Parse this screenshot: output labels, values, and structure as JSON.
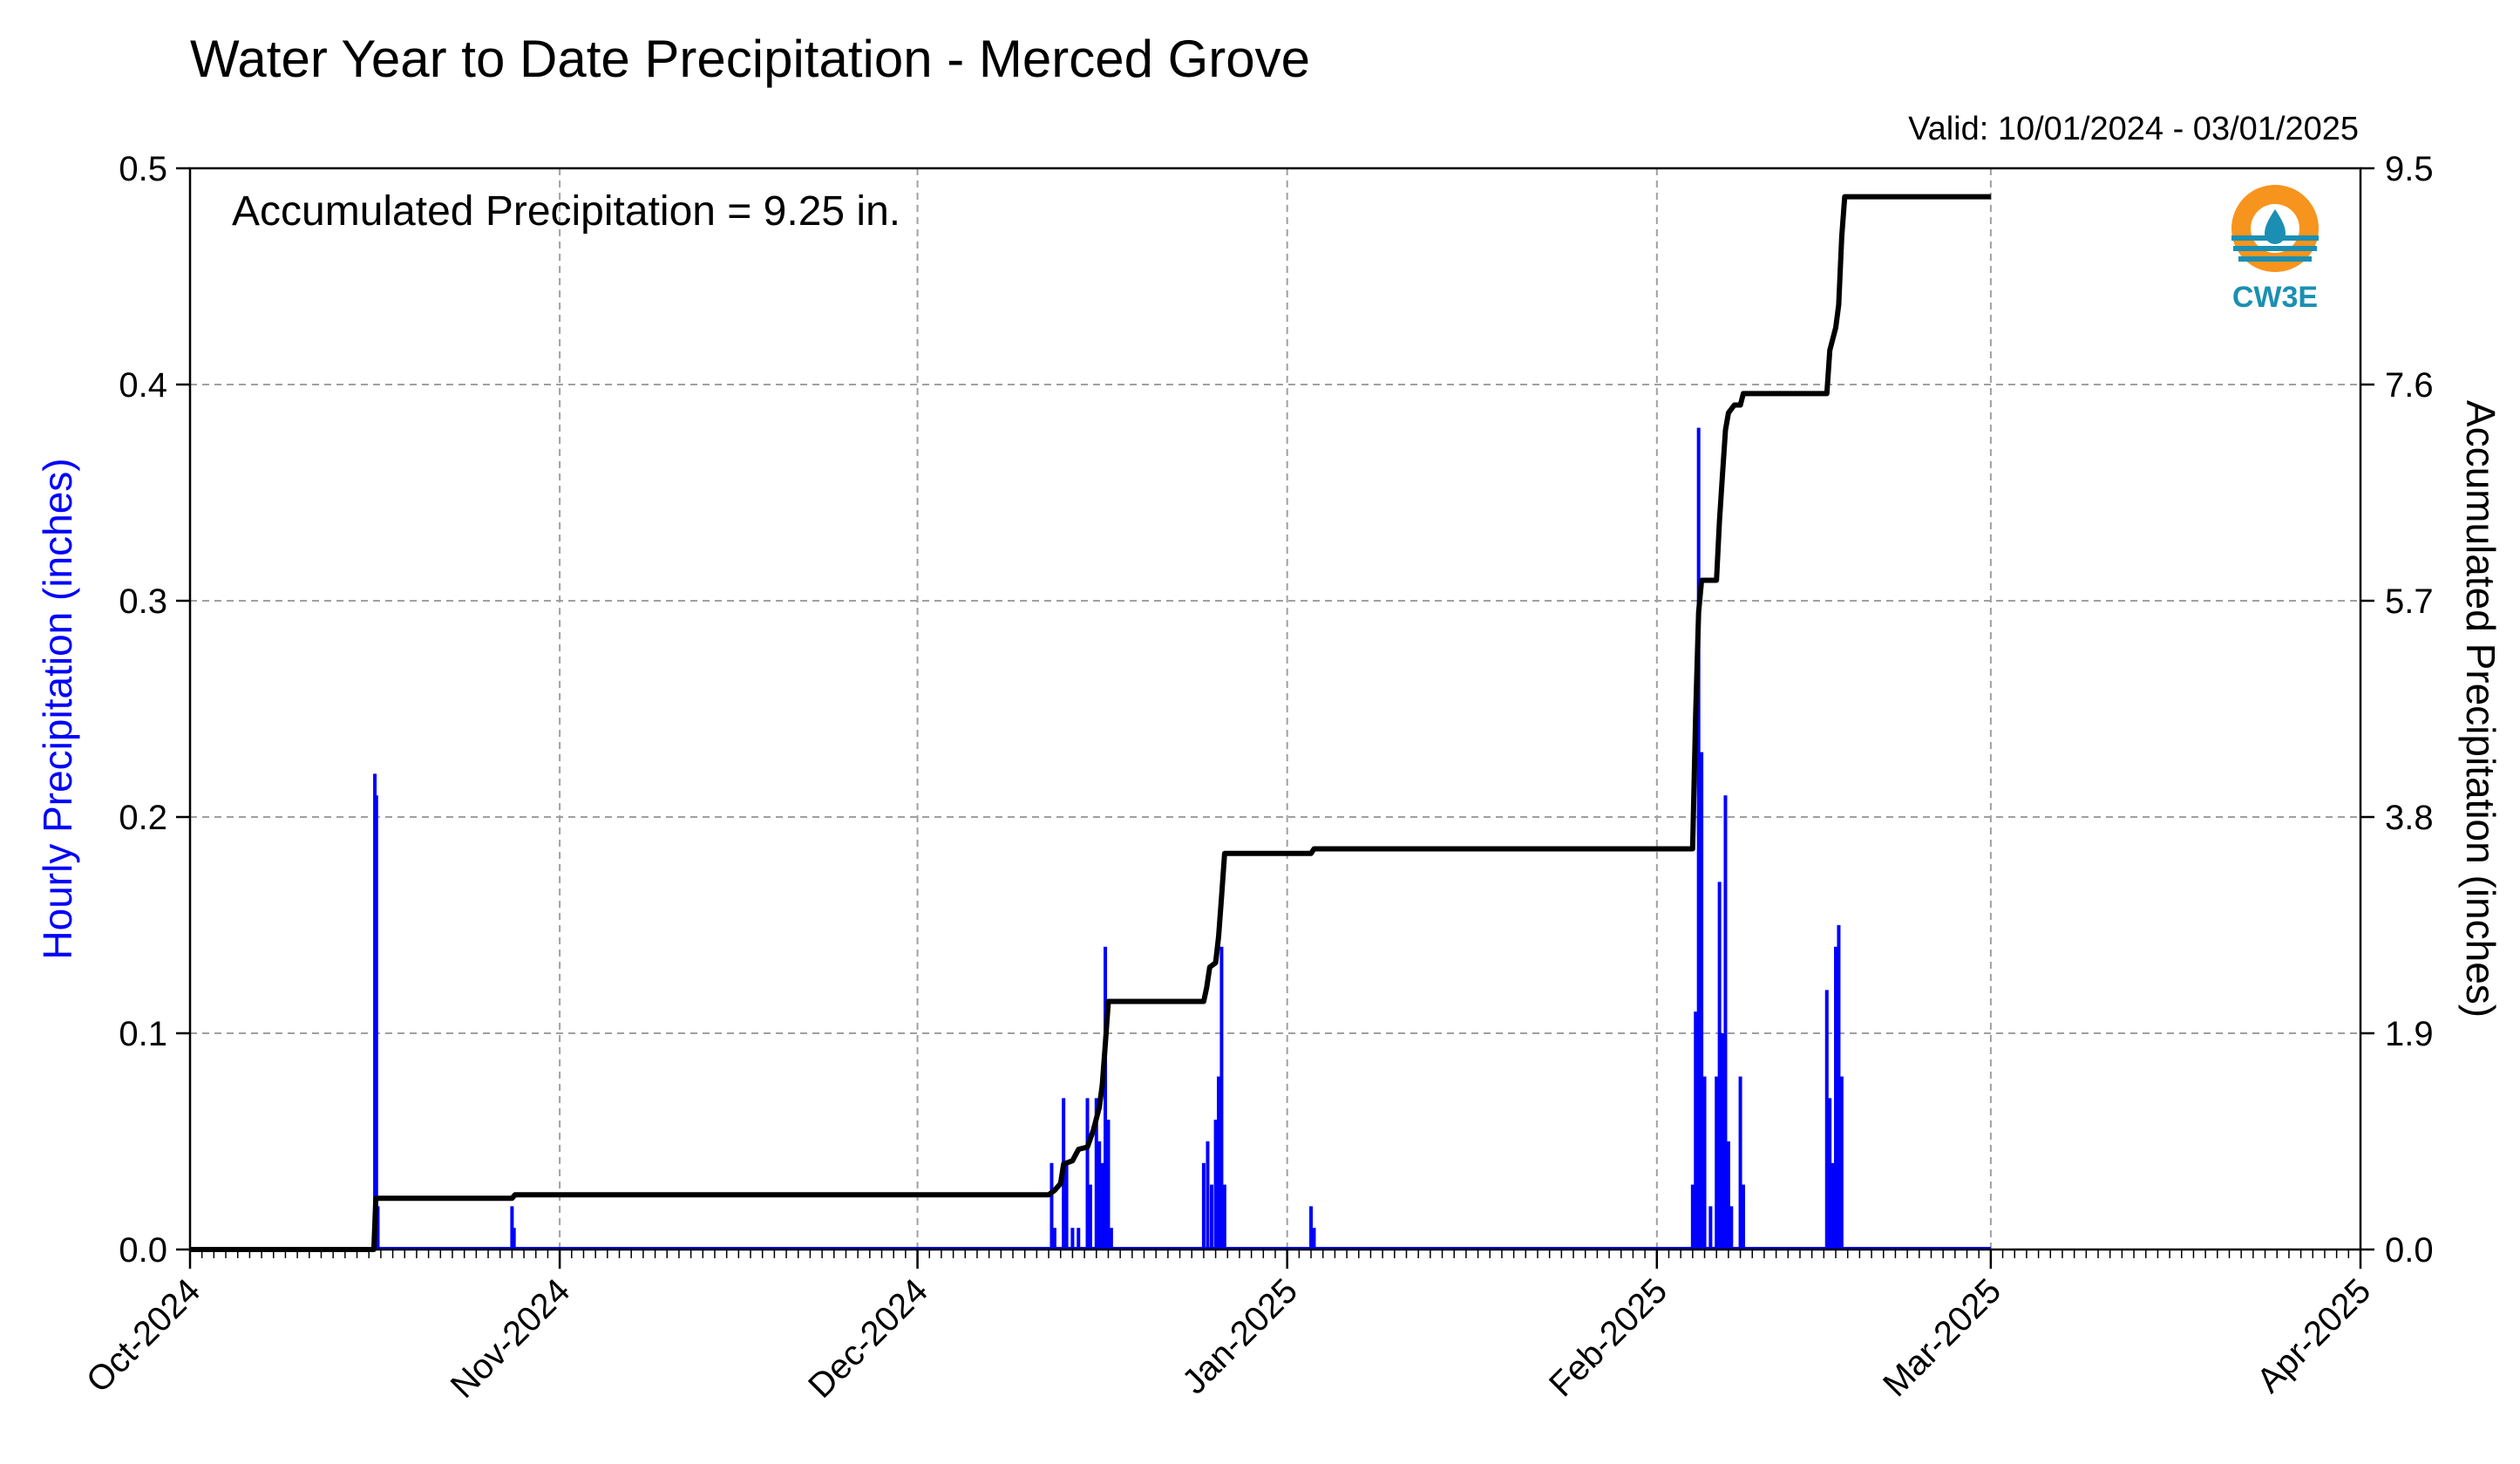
{
  "chart_data": {
    "type": "bar+line",
    "title": "Water Year to Date Precipitation - Merced Grove",
    "valid_label": "Valid: 10/01/2024 - 03/01/2025",
    "annotation": "Accumulated Precipitation = 9.25 in.",
    "ylabel_left": "Hourly Precipitation (inches)",
    "ylabel_right": "Accumulated Precipitation (inches)",
    "x_range": [
      "2024-10-01",
      "2025-04-01"
    ],
    "x_ticks": [
      {
        "date": "2024-10-01",
        "label": "Oct-2024"
      },
      {
        "date": "2024-11-01",
        "label": "Nov-2024"
      },
      {
        "date": "2024-12-01",
        "label": "Dec-2024"
      },
      {
        "date": "2025-01-01",
        "label": "Jan-2025"
      },
      {
        "date": "2025-02-01",
        "label": "Feb-2025"
      },
      {
        "date": "2025-03-01",
        "label": "Mar-2025"
      },
      {
        "date": "2025-04-01",
        "label": "Apr-2025"
      }
    ],
    "y_left": {
      "range": [
        0,
        0.5
      ],
      "ticks": [
        "0.0",
        "0.1",
        "0.2",
        "0.3",
        "0.4",
        "0.5"
      ]
    },
    "y_right": {
      "range": [
        0,
        9.5
      ],
      "ticks": [
        "0.0",
        "1.9",
        "3.8",
        "5.7",
        "7.6",
        "9.5"
      ]
    },
    "grid": true,
    "colors": {
      "hourly": "#0000ff",
      "accumulated": "#000000",
      "logo_orange": "#f7941d",
      "logo_teal": "#1b8fb3"
    },
    "logo_text": "CW3E",
    "hourly_series": {
      "name": "Hourly Precipitation",
      "points": [
        [
          "2024-10-16T12:00",
          0.22
        ],
        [
          "2024-10-16T15:00",
          0.21
        ],
        [
          "2024-10-16T18:00",
          0.02
        ],
        [
          "2024-10-28T00:00",
          0.02
        ],
        [
          "2024-10-28T04:00",
          0.01
        ],
        [
          "2024-12-12T06:00",
          0.04
        ],
        [
          "2024-12-12T12:00",
          0.01
        ],
        [
          "2024-12-13T06:00",
          0.07
        ],
        [
          "2024-12-13T12:00",
          0.04
        ],
        [
          "2024-12-14T00:00",
          0.01
        ],
        [
          "2024-12-14T12:00",
          0.01
        ],
        [
          "2024-12-15T06:00",
          0.07
        ],
        [
          "2024-12-15T12:00",
          0.03
        ],
        [
          "2024-12-16T00:00",
          0.07
        ],
        [
          "2024-12-16T06:00",
          0.05
        ],
        [
          "2024-12-16T12:00",
          0.04
        ],
        [
          "2024-12-16T18:00",
          0.14
        ],
        [
          "2024-12-17T00:00",
          0.06
        ],
        [
          "2024-12-17T06:00",
          0.01
        ],
        [
          "2024-12-25T00:00",
          0.04
        ],
        [
          "2024-12-25T08:00",
          0.05
        ],
        [
          "2024-12-25T16:00",
          0.03
        ],
        [
          "2024-12-26T00:00",
          0.06
        ],
        [
          "2024-12-26T06:00",
          0.08
        ],
        [
          "2024-12-26T12:00",
          0.14
        ],
        [
          "2024-12-26T18:00",
          0.03
        ],
        [
          "2025-01-03T00:00",
          0.02
        ],
        [
          "2025-01-03T06:00",
          0.01
        ],
        [
          "2025-02-04T00:00",
          0.03
        ],
        [
          "2025-02-04T06:00",
          0.11
        ],
        [
          "2025-02-04T12:00",
          0.38
        ],
        [
          "2025-02-04T18:00",
          0.23
        ],
        [
          "2025-02-05T00:00",
          0.08
        ],
        [
          "2025-02-05T12:00",
          0.02
        ],
        [
          "2025-02-06T00:00",
          0.08
        ],
        [
          "2025-02-06T06:00",
          0.17
        ],
        [
          "2025-02-06T12:00",
          0.1
        ],
        [
          "2025-02-06T18:00",
          0.21
        ],
        [
          "2025-02-07T00:00",
          0.05
        ],
        [
          "2025-02-07T06:00",
          0.02
        ],
        [
          "2025-02-08T00:00",
          0.08
        ],
        [
          "2025-02-08T06:00",
          0.03
        ],
        [
          "2025-02-15T06:00",
          0.12
        ],
        [
          "2025-02-15T12:00",
          0.07
        ],
        [
          "2025-02-15T18:00",
          0.04
        ],
        [
          "2025-02-16T00:00",
          0.14
        ],
        [
          "2025-02-16T06:00",
          0.15
        ],
        [
          "2025-02-16T12:00",
          0.08
        ]
      ]
    },
    "accumulated_series": {
      "name": "Accumulated Precipitation",
      "points": [
        [
          "2024-10-01T00:00",
          0.0
        ],
        [
          "2024-10-16T10:00",
          0.0
        ],
        [
          "2024-10-16T14:00",
          0.45
        ],
        [
          "2024-10-28T00:00",
          0.45
        ],
        [
          "2024-10-28T06:00",
          0.48
        ],
        [
          "2024-12-12T00:00",
          0.48
        ],
        [
          "2024-12-12T12:00",
          0.52
        ],
        [
          "2024-12-13T00:00",
          0.58
        ],
        [
          "2024-12-13T06:00",
          0.75
        ],
        [
          "2024-12-14T00:00",
          0.78
        ],
        [
          "2024-12-14T12:00",
          0.88
        ],
        [
          "2024-12-15T06:00",
          0.9
        ],
        [
          "2024-12-15T18:00",
          1.05
        ],
        [
          "2024-12-16T06:00",
          1.25
        ],
        [
          "2024-12-16T12:00",
          1.45
        ],
        [
          "2024-12-16T18:00",
          1.8
        ],
        [
          "2024-12-17T00:00",
          2.18
        ],
        [
          "2024-12-25T00:00",
          2.18
        ],
        [
          "2024-12-25T06:00",
          2.3
        ],
        [
          "2024-12-25T12:00",
          2.48
        ],
        [
          "2024-12-26T00:00",
          2.52
        ],
        [
          "2024-12-26T06:00",
          2.75
        ],
        [
          "2024-12-26T12:00",
          3.1
        ],
        [
          "2024-12-26T18:00",
          3.48
        ],
        [
          "2025-01-03T00:00",
          3.48
        ],
        [
          "2025-01-03T06:00",
          3.52
        ],
        [
          "2025-02-04T00:00",
          3.52
        ],
        [
          "2025-02-04T06:00",
          4.7
        ],
        [
          "2025-02-04T12:00",
          5.6
        ],
        [
          "2025-02-04T18:00",
          5.88
        ],
        [
          "2025-02-06T00:00",
          5.88
        ],
        [
          "2025-02-06T06:00",
          6.4
        ],
        [
          "2025-02-06T12:00",
          6.8
        ],
        [
          "2025-02-06T18:00",
          7.2
        ],
        [
          "2025-02-07T00:00",
          7.35
        ],
        [
          "2025-02-07T12:00",
          7.42
        ],
        [
          "2025-02-08T00:00",
          7.42
        ],
        [
          "2025-02-08T06:00",
          7.52
        ],
        [
          "2025-02-15T06:00",
          7.52
        ],
        [
          "2025-02-15T12:00",
          7.9
        ],
        [
          "2025-02-16T00:00",
          8.1
        ],
        [
          "2025-02-16T06:00",
          8.3
        ],
        [
          "2025-02-16T12:00",
          8.9
        ],
        [
          "2025-02-16T18:00",
          9.25
        ],
        [
          "2025-03-01T00:00",
          9.25
        ]
      ]
    }
  }
}
